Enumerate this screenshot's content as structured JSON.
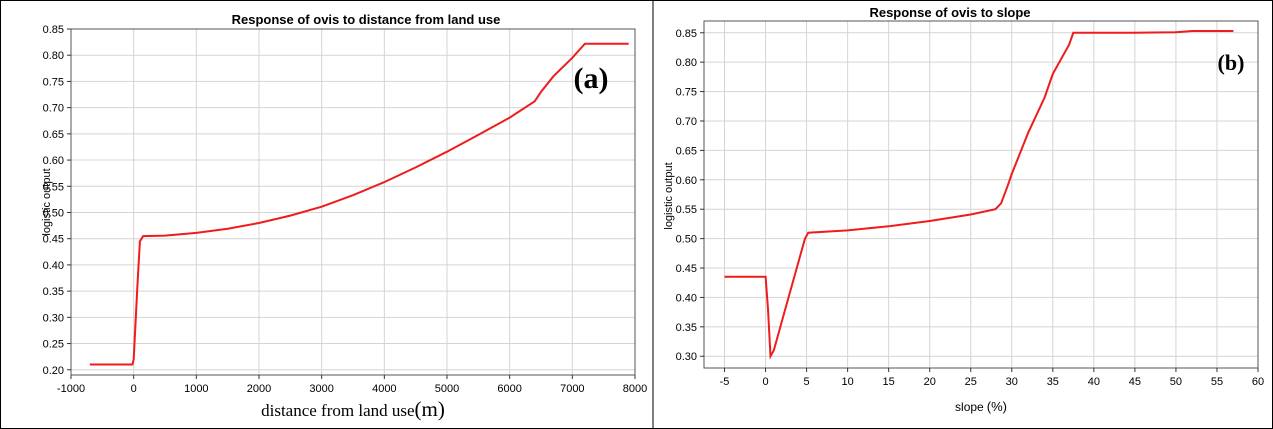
{
  "chart_data": [
    {
      "type": "line",
      "title": "Response of ovis to distance from land use",
      "panel_label": "(a)",
      "xlabel_main": "distance from land use",
      "xlabel_unit": "(m)",
      "ylabel": "logistic output",
      "xlim": [
        -1000,
        8000
      ],
      "ylim": [
        0.19,
        0.85
      ],
      "x_ticks": [
        -1000,
        0,
        1000,
        2000,
        3000,
        4000,
        5000,
        6000,
        7000,
        8000
      ],
      "y_ticks": [
        0.2,
        0.25,
        0.3,
        0.35,
        0.4,
        0.45,
        0.5,
        0.55,
        0.6,
        0.65,
        0.7,
        0.75,
        0.8,
        0.85
      ],
      "grid": true,
      "line_color": "#ee1c1c",
      "series": [
        {
          "x": [
            -700,
            -20,
            0,
            60,
            100,
            150,
            500,
            1000,
            1500,
            2000,
            2500,
            3000,
            3500,
            4000,
            4500,
            5000,
            5500,
            6000,
            6400,
            6500,
            6700,
            7000,
            7200,
            7900
          ],
          "y": [
            0.21,
            0.21,
            0.22,
            0.36,
            0.445,
            0.455,
            0.456,
            0.461,
            0.469,
            0.48,
            0.494,
            0.511,
            0.533,
            0.558,
            0.586,
            0.616,
            0.648,
            0.681,
            0.712,
            0.73,
            0.76,
            0.795,
            0.822,
            0.822
          ]
        }
      ]
    },
    {
      "type": "line",
      "title": "Response of ovis to slope",
      "panel_label": "(b)",
      "xlabel_main": "slope",
      "xlabel_unit": "(%)",
      "ylabel": "logistic output",
      "xlim": [
        -7.5,
        60
      ],
      "ylim": [
        0.28,
        0.87
      ],
      "x_ticks": [
        -5,
        0,
        5,
        10,
        15,
        20,
        25,
        30,
        35,
        40,
        45,
        50,
        55,
        60
      ],
      "y_ticks": [
        0.3,
        0.35,
        0.4,
        0.45,
        0.5,
        0.55,
        0.6,
        0.65,
        0.7,
        0.75,
        0.8,
        0.85
      ],
      "grid": true,
      "line_color": "#ee1c1c",
      "series": [
        {
          "x": [
            -5,
            0,
            0.3,
            0.6,
            1,
            2,
            3,
            4,
            4.8,
            5.2,
            10,
            15,
            20,
            25,
            28,
            28.7,
            29.5,
            30,
            32,
            34,
            35,
            37,
            37.5,
            40,
            45,
            50,
            52,
            55,
            57
          ],
          "y": [
            0.435,
            0.435,
            0.38,
            0.3,
            0.31,
            0.36,
            0.41,
            0.46,
            0.5,
            0.51,
            0.514,
            0.521,
            0.53,
            0.541,
            0.55,
            0.56,
            0.59,
            0.61,
            0.68,
            0.74,
            0.78,
            0.83,
            0.85,
            0.85,
            0.85,
            0.851,
            0.853,
            0.853,
            0.853
          ]
        }
      ]
    }
  ]
}
